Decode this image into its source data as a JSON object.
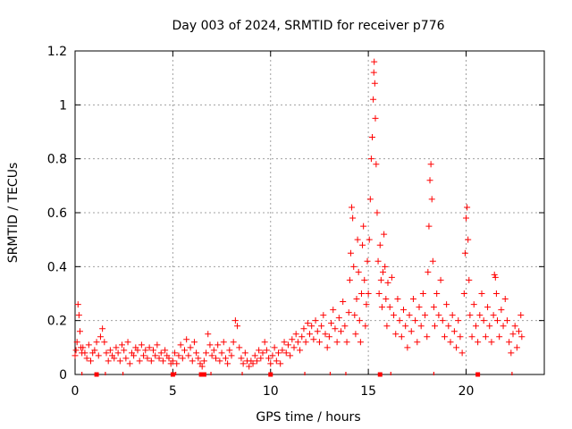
{
  "chart_data": {
    "type": "scatter",
    "title": "Day 003 of 2024, SRMTID for receiver p776",
    "xlabel": "GPS time / hours",
    "ylabel": "SRMTID / TECUs",
    "xlim": [
      0,
      24
    ],
    "ylim": [
      0,
      1.2
    ],
    "xticks": [
      0,
      5,
      10,
      15,
      20
    ],
    "xtick_labels": [
      "0",
      "5",
      "10",
      "15",
      "20"
    ],
    "yticks": [
      0,
      0.2,
      0.4,
      0.6,
      0.8,
      1.0,
      1.2
    ],
    "ytick_labels": [
      "0",
      "0.2",
      "0.4",
      "0.6",
      "0.8",
      "1",
      "1.2"
    ],
    "grid": true,
    "marker": "+",
    "series_color": "#ff0000",
    "series": [
      {
        "name": "SRMTID",
        "points": [
          [
            0.0,
            0.07
          ],
          [
            0.05,
            0.09
          ],
          [
            0.1,
            0.12
          ],
          [
            0.15,
            0.26
          ],
          [
            0.2,
            0.22
          ],
          [
            0.25,
            0.16
          ],
          [
            0.3,
            0.1
          ],
          [
            0.35,
            0.08
          ],
          [
            0.4,
            0.1
          ],
          [
            0.5,
            0.08
          ],
          [
            0.6,
            0.06
          ],
          [
            0.7,
            0.11
          ],
          [
            0.8,
            0.05
          ],
          [
            0.9,
            0.08
          ],
          [
            1.0,
            0.09
          ],
          [
            1.1,
            0.12
          ],
          [
            1.2,
            0.07
          ],
          [
            1.3,
            0.14
          ],
          [
            1.4,
            0.17
          ],
          [
            1.5,
            0.12
          ],
          [
            1.6,
            0.08
          ],
          [
            1.7,
            0.05
          ],
          [
            1.8,
            0.09
          ],
          [
            1.9,
            0.07
          ],
          [
            2.0,
            0.06
          ],
          [
            2.1,
            0.1
          ],
          [
            2.2,
            0.08
          ],
          [
            2.3,
            0.05
          ],
          [
            2.4,
            0.11
          ],
          [
            2.5,
            0.09
          ],
          [
            2.6,
            0.06
          ],
          [
            2.7,
            0.12
          ],
          [
            2.8,
            0.04
          ],
          [
            2.9,
            0.08
          ],
          [
            3.0,
            0.07
          ],
          [
            3.1,
            0.1
          ],
          [
            3.2,
            0.09
          ],
          [
            3.3,
            0.05
          ],
          [
            3.4,
            0.11
          ],
          [
            3.5,
            0.07
          ],
          [
            3.6,
            0.09
          ],
          [
            3.7,
            0.06
          ],
          [
            3.8,
            0.1
          ],
          [
            3.9,
            0.05
          ],
          [
            4.0,
            0.09
          ],
          [
            4.1,
            0.07
          ],
          [
            4.2,
            0.11
          ],
          [
            4.3,
            0.06
          ],
          [
            4.4,
            0.08
          ],
          [
            4.5,
            0.05
          ],
          [
            4.6,
            0.09
          ],
          [
            4.7,
            0.07
          ],
          [
            4.8,
            0.06
          ],
          [
            4.9,
            0.04
          ],
          [
            5.0,
            0.05
          ],
          [
            5.1,
            0.08
          ],
          [
            5.2,
            0.04
          ],
          [
            5.3,
            0.07
          ],
          [
            5.4,
            0.11
          ],
          [
            5.5,
            0.06
          ],
          [
            5.6,
            0.09
          ],
          [
            5.7,
            0.13
          ],
          [
            5.8,
            0.07
          ],
          [
            5.9,
            0.1
          ],
          [
            6.0,
            0.05
          ],
          [
            6.1,
            0.12
          ],
          [
            6.2,
            0.08
          ],
          [
            6.3,
            0.06
          ],
          [
            6.4,
            0.04
          ],
          [
            6.5,
            0.03
          ],
          [
            6.6,
            0.05
          ],
          [
            6.7,
            0.08
          ],
          [
            6.8,
            0.15
          ],
          [
            6.9,
            0.11
          ],
          [
            7.0,
            0.07
          ],
          [
            7.1,
            0.09
          ],
          [
            7.2,
            0.06
          ],
          [
            7.3,
            0.11
          ],
          [
            7.4,
            0.05
          ],
          [
            7.5,
            0.08
          ],
          [
            7.6,
            0.12
          ],
          [
            7.7,
            0.06
          ],
          [
            7.8,
            0.04
          ],
          [
            7.9,
            0.09
          ],
          [
            8.0,
            0.07
          ],
          [
            8.1,
            0.12
          ],
          [
            8.2,
            0.2
          ],
          [
            8.3,
            0.18
          ],
          [
            8.4,
            0.1
          ],
          [
            8.5,
            0.06
          ],
          [
            8.6,
            0.04
          ],
          [
            8.7,
            0.08
          ],
          [
            8.8,
            0.05
          ],
          [
            8.9,
            0.03
          ],
          [
            9.0,
            0.05
          ],
          [
            9.1,
            0.04
          ],
          [
            9.2,
            0.07
          ],
          [
            9.3,
            0.05
          ],
          [
            9.4,
            0.09
          ],
          [
            9.5,
            0.06
          ],
          [
            9.6,
            0.08
          ],
          [
            9.7,
            0.12
          ],
          [
            9.8,
            0.09
          ],
          [
            9.9,
            0.06
          ],
          [
            10.0,
            0.04
          ],
          [
            10.1,
            0.07
          ],
          [
            10.2,
            0.1
          ],
          [
            10.3,
            0.05
          ],
          [
            10.4,
            0.08
          ],
          [
            10.5,
            0.04
          ],
          [
            10.6,
            0.09
          ],
          [
            10.7,
            0.12
          ],
          [
            10.8,
            0.08
          ],
          [
            10.9,
            0.11
          ],
          [
            11.0,
            0.07
          ],
          [
            11.1,
            0.13
          ],
          [
            11.2,
            0.1
          ],
          [
            11.3,
            0.15
          ],
          [
            11.4,
            0.12
          ],
          [
            11.5,
            0.09
          ],
          [
            11.6,
            0.14
          ],
          [
            11.7,
            0.17
          ],
          [
            11.8,
            0.12
          ],
          [
            11.9,
            0.19
          ],
          [
            12.0,
            0.15
          ],
          [
            12.1,
            0.18
          ],
          [
            12.2,
            0.13
          ],
          [
            12.3,
            0.2
          ],
          [
            12.4,
            0.16
          ],
          [
            12.5,
            0.12
          ],
          [
            12.6,
            0.18
          ],
          [
            12.7,
            0.22
          ],
          [
            12.8,
            0.15
          ],
          [
            12.9,
            0.1
          ],
          [
            13.0,
            0.14
          ],
          [
            13.1,
            0.19
          ],
          [
            13.2,
            0.24
          ],
          [
            13.3,
            0.17
          ],
          [
            13.4,
            0.12
          ],
          [
            13.5,
            0.21
          ],
          [
            13.6,
            0.16
          ],
          [
            13.7,
            0.27
          ],
          [
            13.8,
            0.18
          ],
          [
            13.9,
            0.12
          ],
          [
            14.0,
            0.23
          ],
          [
            14.05,
            0.35
          ],
          [
            14.1,
            0.45
          ],
          [
            14.15,
            0.62
          ],
          [
            14.2,
            0.58
          ],
          [
            14.25,
            0.4
          ],
          [
            14.3,
            0.22
          ],
          [
            14.35,
            0.15
          ],
          [
            14.4,
            0.28
          ],
          [
            14.45,
            0.5
          ],
          [
            14.5,
            0.38
          ],
          [
            14.55,
            0.2
          ],
          [
            14.6,
            0.12
          ],
          [
            14.65,
            0.3
          ],
          [
            14.7,
            0.48
          ],
          [
            14.75,
            0.55
          ],
          [
            14.8,
            0.35
          ],
          [
            14.85,
            0.18
          ],
          [
            14.9,
            0.26
          ],
          [
            14.95,
            0.42
          ],
          [
            15.0,
            0.3
          ],
          [
            15.05,
            0.5
          ],
          [
            15.1,
            0.65
          ],
          [
            15.15,
            0.8
          ],
          [
            15.2,
            0.88
          ],
          [
            15.25,
            1.02
          ],
          [
            15.28,
            1.12
          ],
          [
            15.3,
            1.16
          ],
          [
            15.33,
            1.08
          ],
          [
            15.36,
            0.95
          ],
          [
            15.4,
            0.78
          ],
          [
            15.45,
            0.6
          ],
          [
            15.5,
            0.42
          ],
          [
            15.55,
            0.3
          ],
          [
            15.6,
            0.48
          ],
          [
            15.65,
            0.35
          ],
          [
            15.7,
            0.25
          ],
          [
            15.75,
            0.38
          ],
          [
            15.8,
            0.52
          ],
          [
            15.85,
            0.4
          ],
          [
            15.9,
            0.28
          ],
          [
            15.95,
            0.18
          ],
          [
            16.0,
            0.34
          ],
          [
            16.1,
            0.25
          ],
          [
            16.2,
            0.36
          ],
          [
            16.3,
            0.22
          ],
          [
            16.4,
            0.15
          ],
          [
            16.5,
            0.28
          ],
          [
            16.6,
            0.2
          ],
          [
            16.7,
            0.14
          ],
          [
            16.8,
            0.24
          ],
          [
            16.9,
            0.18
          ],
          [
            17.0,
            0.1
          ],
          [
            17.1,
            0.22
          ],
          [
            17.2,
            0.16
          ],
          [
            17.3,
            0.28
          ],
          [
            17.4,
            0.2
          ],
          [
            17.5,
            0.12
          ],
          [
            17.6,
            0.25
          ],
          [
            17.7,
            0.18
          ],
          [
            17.8,
            0.3
          ],
          [
            17.9,
            0.22
          ],
          [
            18.0,
            0.14
          ],
          [
            18.05,
            0.38
          ],
          [
            18.1,
            0.55
          ],
          [
            18.15,
            0.72
          ],
          [
            18.2,
            0.78
          ],
          [
            18.25,
            0.65
          ],
          [
            18.3,
            0.42
          ],
          [
            18.35,
            0.25
          ],
          [
            18.4,
            0.18
          ],
          [
            18.5,
            0.3
          ],
          [
            18.6,
            0.22
          ],
          [
            18.7,
            0.35
          ],
          [
            18.8,
            0.2
          ],
          [
            18.9,
            0.14
          ],
          [
            19.0,
            0.26
          ],
          [
            19.1,
            0.18
          ],
          [
            19.2,
            0.12
          ],
          [
            19.3,
            0.22
          ],
          [
            19.4,
            0.16
          ],
          [
            19.5,
            0.1
          ],
          [
            19.6,
            0.2
          ],
          [
            19.7,
            0.14
          ],
          [
            19.8,
            0.08
          ],
          [
            19.9,
            0.3
          ],
          [
            19.95,
            0.45
          ],
          [
            20.0,
            0.58
          ],
          [
            20.05,
            0.62
          ],
          [
            20.1,
            0.5
          ],
          [
            20.15,
            0.35
          ],
          [
            20.2,
            0.22
          ],
          [
            20.3,
            0.14
          ],
          [
            20.4,
            0.26
          ],
          [
            20.5,
            0.18
          ],
          [
            20.6,
            0.12
          ],
          [
            20.7,
            0.22
          ],
          [
            20.8,
            0.3
          ],
          [
            20.9,
            0.2
          ],
          [
            21.0,
            0.14
          ],
          [
            21.1,
            0.25
          ],
          [
            21.2,
            0.18
          ],
          [
            21.3,
            0.12
          ],
          [
            21.4,
            0.22
          ],
          [
            21.45,
            0.37
          ],
          [
            21.5,
            0.36
          ],
          [
            21.55,
            0.3
          ],
          [
            21.6,
            0.2
          ],
          [
            21.7,
            0.14
          ],
          [
            21.8,
            0.24
          ],
          [
            21.9,
            0.18
          ],
          [
            22.0,
            0.28
          ],
          [
            22.1,
            0.2
          ],
          [
            22.2,
            0.12
          ],
          [
            22.3,
            0.08
          ],
          [
            22.4,
            0.15
          ],
          [
            22.5,
            0.18
          ],
          [
            22.6,
            0.1
          ],
          [
            22.7,
            0.16
          ],
          [
            22.8,
            0.22
          ],
          [
            22.85,
            0.14
          ]
        ]
      }
    ],
    "axis_markers": {
      "positions": [
        1.1,
        5.0,
        6.45,
        6.6,
        10.0,
        15.6,
        20.6
      ],
      "ticks": [
        0.35,
        1.55,
        2.45,
        5.15,
        6.95,
        8.55,
        11.75,
        13.05,
        13.85,
        16.15,
        18.35,
        22.35
      ]
    }
  }
}
